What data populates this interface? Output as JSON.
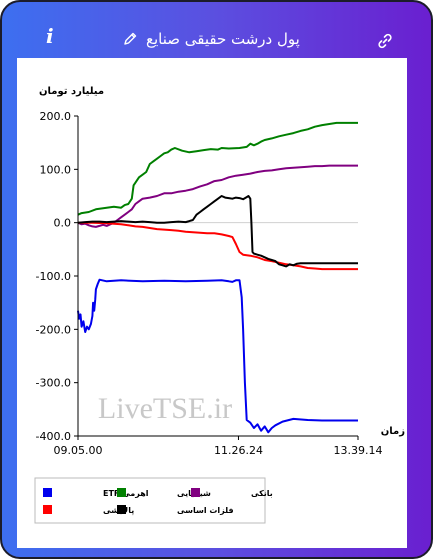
{
  "header": {
    "title": "پول درشت حقیقی صنایع",
    "info_label": "i"
  },
  "colors": {
    "etf": "#0000ee",
    "petro": "#008000",
    "bank": "#800080",
    "refinery": "#ff0000",
    "metals": "#000000"
  },
  "watermark": "LiveTSE.ir",
  "chart_data": {
    "type": "line",
    "ylabel": "میلیارد تومان",
    "xlabel": "زمان",
    "ylim": [
      -400,
      200
    ],
    "yticks": [
      "200.0",
      "100.0",
      "0.0",
      "-100.0",
      "-200.0",
      "-300.0",
      "-400.0"
    ],
    "xticks": [
      "09.05.00",
      "11.26.24",
      "13.39.14"
    ],
    "legend_placement": "bottom",
    "series": [
      {
        "name": "اهرمی ETF",
        "color": "#0000ee",
        "points": [
          [
            0,
            -165
          ],
          [
            0.3,
            -180
          ],
          [
            0.7,
            -172
          ],
          [
            1,
            -195
          ],
          [
            1.5,
            -185
          ],
          [
            2,
            -205
          ],
          [
            2.5,
            -195
          ],
          [
            3,
            -200
          ],
          [
            3.6,
            -190
          ],
          [
            4,
            -175
          ],
          [
            4.2,
            -150
          ],
          [
            4.5,
            -165
          ],
          [
            4.8,
            -145
          ],
          [
            5,
            -125
          ],
          [
            5.5,
            -115
          ],
          [
            6,
            -107
          ],
          [
            8,
            -110
          ],
          [
            12,
            -108
          ],
          [
            18,
            -110
          ],
          [
            24,
            -109
          ],
          [
            30,
            -110
          ],
          [
            36,
            -109
          ],
          [
            40,
            -108
          ],
          [
            42,
            -110
          ],
          [
            43,
            -111
          ],
          [
            44,
            -108
          ],
          [
            45,
            -108
          ],
          [
            45.6,
            -140
          ],
          [
            46,
            -200
          ],
          [
            46.5,
            -300
          ],
          [
            47,
            -370
          ],
          [
            48,
            -375
          ],
          [
            49,
            -385
          ],
          [
            50,
            -378
          ],
          [
            51,
            -390
          ],
          [
            52,
            -382
          ],
          [
            53,
            -393
          ],
          [
            54,
            -385
          ],
          [
            55,
            -380
          ],
          [
            57,
            -373
          ],
          [
            60,
            -368
          ],
          [
            64,
            -370
          ],
          [
            68,
            -371
          ],
          [
            72,
            -371
          ],
          [
            78,
            -371
          ]
        ]
      },
      {
        "name": "شیمیایی",
        "color": "#008000",
        "points": [
          [
            0,
            15
          ],
          [
            1,
            18
          ],
          [
            3,
            20
          ],
          [
            5,
            25
          ],
          [
            8,
            28
          ],
          [
            10,
            30
          ],
          [
            12,
            28
          ],
          [
            13,
            33
          ],
          [
            14,
            35
          ],
          [
            15,
            45
          ],
          [
            15.5,
            70
          ],
          [
            16,
            75
          ],
          [
            17,
            85
          ],
          [
            18,
            90
          ],
          [
            19,
            95
          ],
          [
            20,
            110
          ],
          [
            21,
            115
          ],
          [
            22,
            120
          ],
          [
            23,
            125
          ],
          [
            24,
            130
          ],
          [
            25,
            132
          ],
          [
            26,
            137
          ],
          [
            27,
            140
          ],
          [
            29,
            135
          ],
          [
            31,
            132
          ],
          [
            33,
            134
          ],
          [
            35,
            136
          ],
          [
            37,
            138
          ],
          [
            39,
            137
          ],
          [
            40,
            140
          ],
          [
            42,
            139
          ],
          [
            45,
            140
          ],
          [
            47,
            142
          ],
          [
            48,
            148
          ],
          [
            49,
            145
          ],
          [
            50,
            148
          ],
          [
            51,
            152
          ],
          [
            52,
            155
          ],
          [
            54,
            158
          ],
          [
            56,
            162
          ],
          [
            58,
            165
          ],
          [
            60,
            168
          ],
          [
            62,
            172
          ],
          [
            64,
            175
          ],
          [
            66,
            180
          ],
          [
            68,
            183
          ],
          [
            70,
            185
          ],
          [
            72,
            187
          ],
          [
            78,
            187
          ]
        ]
      },
      {
        "name": "بانکی",
        "color": "#800080",
        "points": [
          [
            0,
            0
          ],
          [
            1,
            -3
          ],
          [
            2,
            -2
          ],
          [
            3,
            -5
          ],
          [
            4,
            -7
          ],
          [
            5,
            -8
          ],
          [
            6,
            -6
          ],
          [
            7,
            -4
          ],
          [
            8,
            -6
          ],
          [
            9,
            -3
          ],
          [
            10,
            0
          ],
          [
            11,
            5
          ],
          [
            12,
            10
          ],
          [
            13,
            15
          ],
          [
            14,
            20
          ],
          [
            15,
            25
          ],
          [
            16,
            35
          ],
          [
            17,
            40
          ],
          [
            18,
            45
          ],
          [
            20,
            47
          ],
          [
            22,
            50
          ],
          [
            24,
            55
          ],
          [
            26,
            55
          ],
          [
            28,
            58
          ],
          [
            30,
            60
          ],
          [
            32,
            63
          ],
          [
            34,
            68
          ],
          [
            36,
            72
          ],
          [
            38,
            78
          ],
          [
            40,
            80
          ],
          [
            42,
            85
          ],
          [
            44,
            88
          ],
          [
            46,
            90
          ],
          [
            48,
            92
          ],
          [
            50,
            95
          ],
          [
            52,
            97
          ],
          [
            54,
            98
          ],
          [
            56,
            100
          ],
          [
            58,
            102
          ],
          [
            60,
            103
          ],
          [
            62,
            104
          ],
          [
            64,
            105
          ],
          [
            66,
            106
          ],
          [
            68,
            106
          ],
          [
            70,
            107
          ],
          [
            72,
            107
          ],
          [
            78,
            107
          ]
        ]
      },
      {
        "name": "پالایشی",
        "color": "#ff0000",
        "points": [
          [
            0,
            0
          ],
          [
            4,
            0
          ],
          [
            8,
            -1
          ],
          [
            10,
            -2
          ],
          [
            12,
            -3
          ],
          [
            14,
            -5
          ],
          [
            16,
            -7
          ],
          [
            18,
            -8
          ],
          [
            20,
            -10
          ],
          [
            22,
            -12
          ],
          [
            24,
            -13
          ],
          [
            26,
            -14
          ],
          [
            28,
            -15
          ],
          [
            30,
            -17
          ],
          [
            32,
            -18
          ],
          [
            34,
            -19
          ],
          [
            36,
            -20
          ],
          [
            38,
            -20
          ],
          [
            40,
            -22
          ],
          [
            42,
            -25
          ],
          [
            43,
            -27
          ],
          [
            44,
            -40
          ],
          [
            45,
            -55
          ],
          [
            46,
            -60
          ],
          [
            48,
            -62
          ],
          [
            50,
            -65
          ],
          [
            52,
            -70
          ],
          [
            54,
            -72
          ],
          [
            56,
            -75
          ],
          [
            58,
            -78
          ],
          [
            60,
            -80
          ],
          [
            62,
            -82
          ],
          [
            64,
            -85
          ],
          [
            66,
            -86
          ],
          [
            68,
            -87
          ],
          [
            70,
            -87
          ],
          [
            72,
            -87
          ],
          [
            78,
            -87
          ]
        ]
      },
      {
        "name": "فلزات اساسی",
        "color": "#000000",
        "points": [
          [
            0,
            0
          ],
          [
            2,
            1
          ],
          [
            4,
            2
          ],
          [
            6,
            2
          ],
          [
            8,
            1
          ],
          [
            10,
            2
          ],
          [
            12,
            3
          ],
          [
            14,
            2
          ],
          [
            16,
            1
          ],
          [
            18,
            2
          ],
          [
            20,
            1
          ],
          [
            22,
            0
          ],
          [
            24,
            0
          ],
          [
            26,
            1
          ],
          [
            28,
            2
          ],
          [
            30,
            1
          ],
          [
            31,
            3
          ],
          [
            32,
            5
          ],
          [
            33,
            15
          ],
          [
            34,
            20
          ],
          [
            35,
            25
          ],
          [
            36,
            30
          ],
          [
            37,
            35
          ],
          [
            38,
            40
          ],
          [
            39,
            45
          ],
          [
            40,
            50
          ],
          [
            41,
            47
          ],
          [
            42,
            46
          ],
          [
            43,
            45
          ],
          [
            44,
            47
          ],
          [
            45,
            46
          ],
          [
            46,
            44
          ],
          [
            47,
            48
          ],
          [
            47.5,
            50
          ],
          [
            48,
            45
          ],
          [
            48.3,
            0
          ],
          [
            48.6,
            -55
          ],
          [
            49,
            -58
          ],
          [
            50,
            -60
          ],
          [
            51,
            -62
          ],
          [
            52,
            -65
          ],
          [
            53,
            -68
          ],
          [
            54,
            -70
          ],
          [
            55,
            -72
          ],
          [
            56,
            -78
          ],
          [
            57,
            -80
          ],
          [
            58,
            -82
          ],
          [
            59,
            -78
          ],
          [
            60,
            -80
          ],
          [
            61,
            -77
          ],
          [
            62,
            -76
          ],
          [
            64,
            -76
          ],
          [
            66,
            -76
          ],
          [
            68,
            -76
          ],
          [
            70,
            -76
          ],
          [
            72,
            -76
          ],
          [
            78,
            -76
          ]
        ]
      }
    ],
    "legend": [
      {
        "label": "اهرمی ETF",
        "color": "#0000ee"
      },
      {
        "label": "شیمیایی",
        "color": "#008000"
      },
      {
        "label": "بانکی",
        "color": "#800080"
      },
      {
        "label": "پالایشی",
        "color": "#ff0000"
      },
      {
        "label": "فلزات اساسی",
        "color": "#000000"
      }
    ]
  }
}
